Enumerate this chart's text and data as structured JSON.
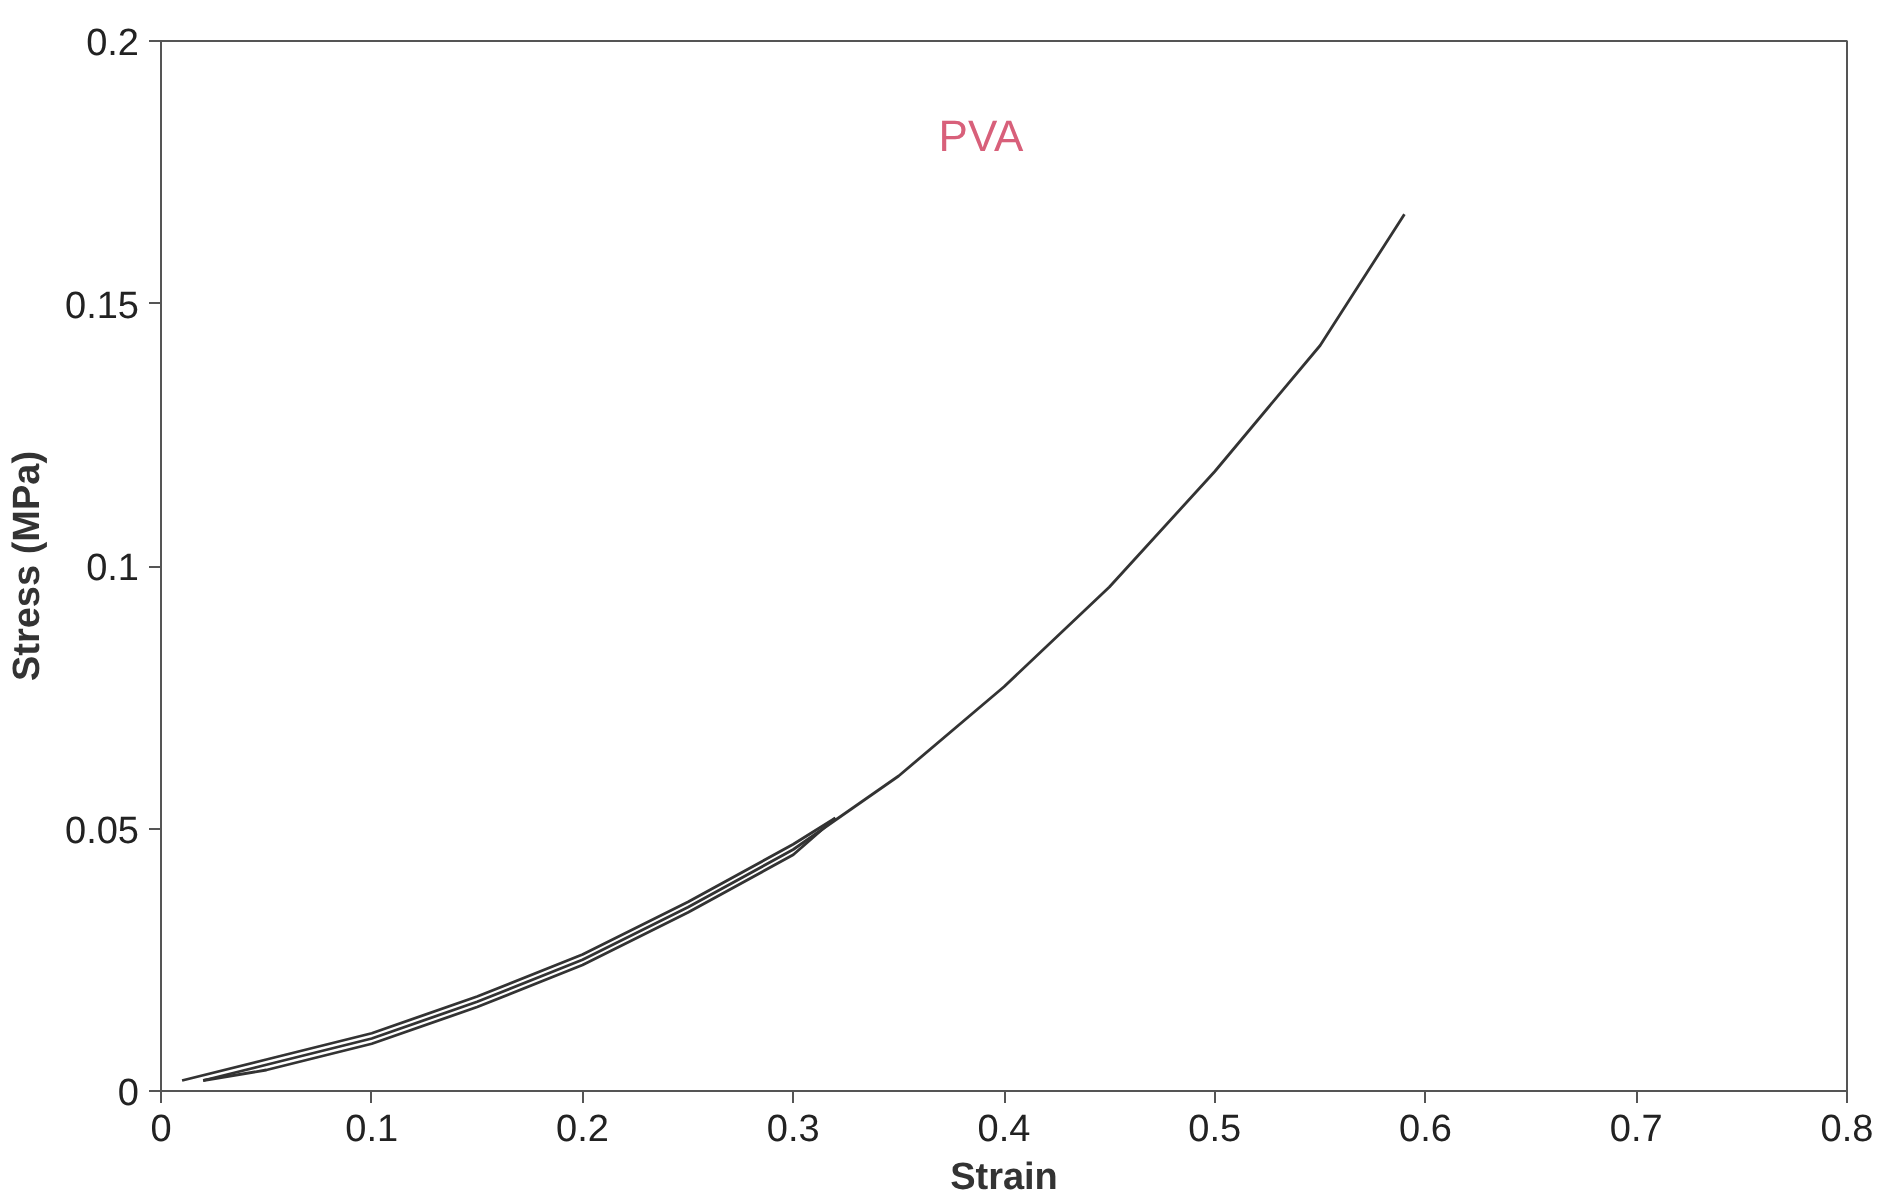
{
  "chart_data": {
    "type": "line",
    "title": "PVA",
    "xlabel": "Strain",
    "ylabel": "Stress (MPa)",
    "xlim": [
      0,
      0.8
    ],
    "ylim": [
      0,
      0.2
    ],
    "xticks": [
      0,
      0.1,
      0.2,
      0.3,
      0.4,
      0.5,
      0.6,
      0.7,
      0.8
    ],
    "yticks": [
      0,
      0.05,
      0.1,
      0.15,
      0.2
    ],
    "grid": false,
    "marker": "none",
    "line_style": "solid",
    "series": [
      {
        "color": "#333333",
        "x": [
          0.01,
          0.05,
          0.1,
          0.15,
          0.2,
          0.25,
          0.3,
          0.32
        ],
        "values": [
          0.002,
          0.006,
          0.011,
          0.018,
          0.026,
          0.036,
          0.047,
          0.052
        ]
      },
      {
        "color": "#333333",
        "x": [
          0.32,
          0.3,
          0.25,
          0.2,
          0.15,
          0.1,
          0.05,
          0.02
        ],
        "values": [
          0.052,
          0.045,
          0.034,
          0.024,
          0.016,
          0.009,
          0.004,
          0.002
        ]
      },
      {
        "color": "#333333",
        "x": [
          0.02,
          0.05,
          0.1,
          0.15,
          0.2,
          0.25,
          0.3,
          0.35,
          0.4,
          0.45,
          0.5,
          0.55,
          0.59
        ],
        "values": [
          0.002,
          0.005,
          0.01,
          0.017,
          0.025,
          0.035,
          0.046,
          0.06,
          0.077,
          0.096,
          0.118,
          0.142,
          0.167
        ]
      }
    ]
  }
}
